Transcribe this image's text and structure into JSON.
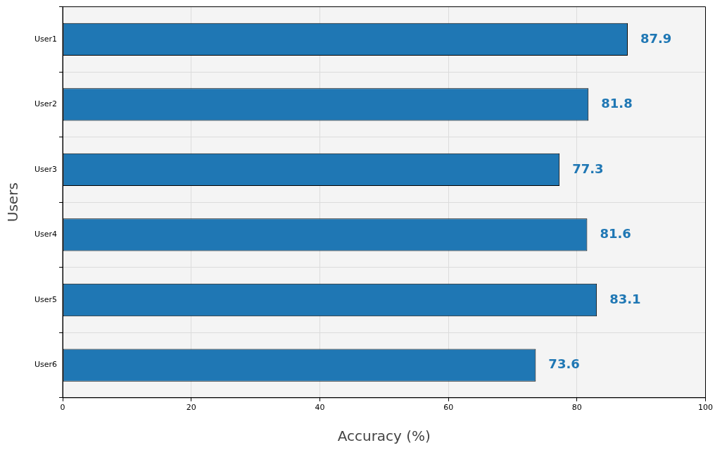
{
  "chart_data": {
    "type": "bar",
    "orientation": "horizontal",
    "xlabel": "Accuracy (%)",
    "ylabel": "Users",
    "categories": [
      "User1",
      "User2",
      "User3",
      "User4",
      "User5",
      "User6"
    ],
    "values": [
      87.9,
      81.8,
      77.3,
      81.6,
      83.1,
      73.6
    ],
    "color": "#1f77b4",
    "data_labels": true,
    "grid": true,
    "xlim": [
      0,
      100
    ],
    "xticks": [
      0,
      20,
      40,
      60,
      80,
      100
    ]
  }
}
